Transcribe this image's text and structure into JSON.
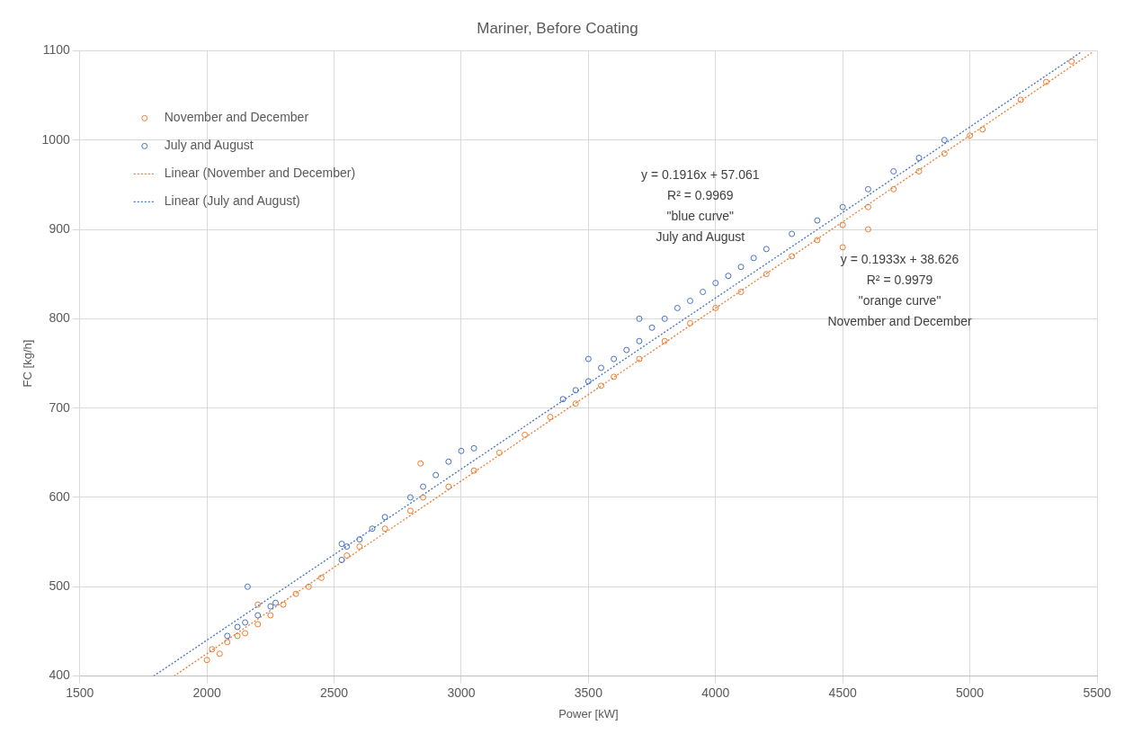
{
  "chart_data": {
    "type": "scatter",
    "title": "Mariner, Before Coating",
    "xlabel": "Power [kW]",
    "ylabel": "FC [kg/h]",
    "xlim": [
      1500,
      5500
    ],
    "xticks": [
      1500,
      2000,
      2500,
      3000,
      3500,
      4000,
      4500,
      5000,
      5500
    ],
    "ylim": [
      400,
      1100
    ],
    "yticks": [
      400,
      500,
      600,
      700,
      800,
      900,
      1000,
      1100
    ],
    "grid": true,
    "legend": "top left",
    "marker": "circle",
    "series": [
      {
        "name": "November and December",
        "color": "#ed7d31",
        "x": [
          2000,
          2020,
          2050,
          2080,
          2120,
          2150,
          2200,
          2250,
          2300,
          2350,
          2400,
          2450,
          2550,
          2600,
          2700,
          2800,
          2850,
          2950,
          3050,
          3150,
          3250,
          3350,
          3450,
          3550,
          3600,
          3700,
          3800,
          3900,
          4000,
          4100,
          4200,
          4300,
          4400,
          4500,
          4600,
          4700,
          4800,
          4900,
          5000,
          5050,
          5200,
          5300,
          5400,
          2200,
          2840,
          4600,
          4500
        ],
        "values": [
          418,
          430,
          425,
          438,
          445,
          448,
          458,
          468,
          480,
          492,
          500,
          510,
          535,
          545,
          565,
          585,
          600,
          612,
          630,
          650,
          670,
          690,
          705,
          725,
          735,
          755,
          775,
          795,
          812,
          830,
          850,
          870,
          888,
          905,
          925,
          945,
          965,
          985,
          1005,
          1012,
          1045,
          1065,
          1088,
          480,
          638,
          900,
          880
        ]
      },
      {
        "name": "July and August",
        "color": "#4472c4",
        "x": [
          2080,
          2120,
          2150,
          2160,
          2200,
          2250,
          2270,
          2530,
          2550,
          2600,
          2650,
          2700,
          2800,
          2850,
          2900,
          2950,
          3000,
          3050,
          3400,
          3450,
          3500,
          3550,
          3600,
          3650,
          3700,
          3750,
          3800,
          3850,
          3900,
          3950,
          4000,
          4050,
          4100,
          4150,
          4200,
          4300,
          4400,
          4500,
          4600,
          4700,
          4800,
          4900,
          2530,
          3500,
          3700
        ],
        "values": [
          445,
          455,
          460,
          500,
          468,
          478,
          482,
          530,
          545,
          553,
          565,
          578,
          600,
          612,
          625,
          640,
          652,
          655,
          710,
          720,
          730,
          745,
          755,
          765,
          775,
          790,
          800,
          812,
          820,
          830,
          840,
          848,
          858,
          868,
          878,
          895,
          910,
          925,
          945,
          965,
          980,
          1000,
          548,
          755,
          800
        ]
      },
      {
        "name": "Linear (November and December)",
        "type": "line",
        "line_style": "dotted",
        "marker": "none",
        "color": "#ed7d31",
        "x": [
          1870,
          5480
        ],
        "values": [
          400,
          1098
        ]
      },
      {
        "name": "Linear (July and August)",
        "type": "line",
        "line_style": "dotted",
        "marker": "none",
        "color": "#4472c4",
        "x": [
          1790,
          5440
        ],
        "values": [
          400,
          1099
        ]
      }
    ],
    "annotations": [
      "y = 0.1916x + 57.061\nR² = 0.9969\n\"blue curve\"\nJuly and August",
      "y = 0.1933x + 38.626\nR² = 0.9979\n\"orange curve\"\nNovember and December"
    ]
  }
}
